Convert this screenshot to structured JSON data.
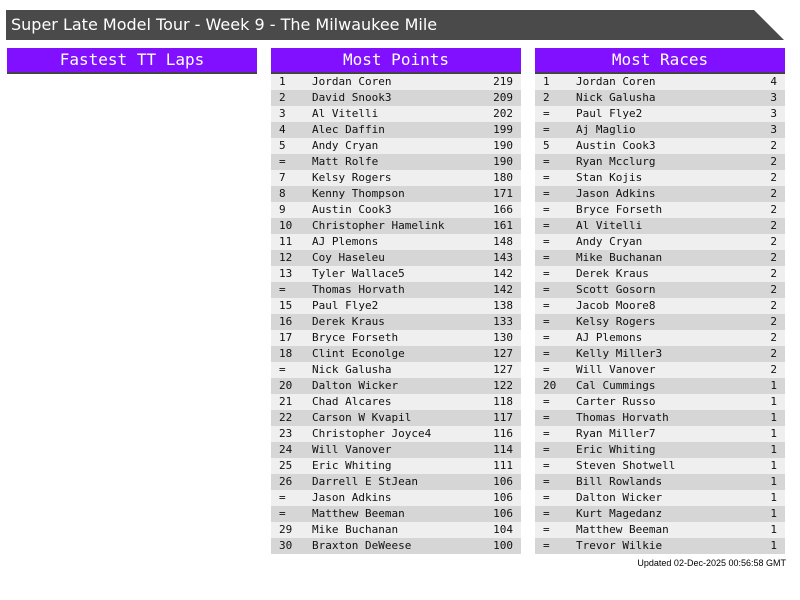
{
  "title": "Super Late Model Tour - Week 9 - The Milwaukee Mile",
  "colors": {
    "header": "#8010ff",
    "title_bar": "#4a4a4a",
    "row_light": "#efefef",
    "row_dark": "#d6d6d6"
  },
  "panels": [
    {
      "heading": "Fastest TT Laps",
      "rows": []
    },
    {
      "heading": "Most Points",
      "rows": [
        [
          "1",
          "Jordan Coren",
          "219"
        ],
        [
          "2",
          "David Snook3",
          "209"
        ],
        [
          "3",
          "Al Vitelli",
          "202"
        ],
        [
          "4",
          "Alec Daffin",
          "199"
        ],
        [
          "5",
          "Andy Cryan",
          "190"
        ],
        [
          "=",
          "Matt Rolfe",
          "190"
        ],
        [
          "7",
          "Kelsy Rogers",
          "180"
        ],
        [
          "8",
          "Kenny Thompson",
          "171"
        ],
        [
          "9",
          "Austin Cook3",
          "166"
        ],
        [
          "10",
          "Christopher Hamelink",
          "161"
        ],
        [
          "11",
          "AJ Plemons",
          "148"
        ],
        [
          "12",
          "Coy Haseleu",
          "143"
        ],
        [
          "13",
          "Tyler Wallace5",
          "142"
        ],
        [
          "=",
          "Thomas Horvath",
          "142"
        ],
        [
          "15",
          "Paul Flye2",
          "138"
        ],
        [
          "16",
          "Derek Kraus",
          "133"
        ],
        [
          "17",
          "Bryce Forseth",
          "130"
        ],
        [
          "18",
          "Clint Econolge",
          "127"
        ],
        [
          "=",
          "Nick Galusha",
          "127"
        ],
        [
          "20",
          "Dalton Wicker",
          "122"
        ],
        [
          "21",
          "Chad Alcares",
          "118"
        ],
        [
          "22",
          "Carson W Kvapil",
          "117"
        ],
        [
          "23",
          "Christopher Joyce4",
          "116"
        ],
        [
          "24",
          "Will Vanover",
          "114"
        ],
        [
          "25",
          "Eric Whiting",
          "111"
        ],
        [
          "26",
          "Darrell E StJean",
          "106"
        ],
        [
          "=",
          "Jason Adkins",
          "106"
        ],
        [
          "=",
          "Matthew Beeman",
          "106"
        ],
        [
          "29",
          "Mike Buchanan",
          "104"
        ],
        [
          "30",
          "Braxton DeWeese",
          "100"
        ]
      ]
    },
    {
      "heading": "Most Races",
      "rows": [
        [
          "1",
          "Jordan Coren",
          "4"
        ],
        [
          "2",
          "Nick Galusha",
          "3"
        ],
        [
          "=",
          "Paul Flye2",
          "3"
        ],
        [
          "=",
          "Aj Maglio",
          "3"
        ],
        [
          "5",
          "Austin Cook3",
          "2"
        ],
        [
          "=",
          "Ryan Mcclurg",
          "2"
        ],
        [
          "=",
          "Stan Kojis",
          "2"
        ],
        [
          "=",
          "Jason Adkins",
          "2"
        ],
        [
          "=",
          "Bryce Forseth",
          "2"
        ],
        [
          "=",
          "Al Vitelli",
          "2"
        ],
        [
          "=",
          "Andy Cryan",
          "2"
        ],
        [
          "=",
          "Mike Buchanan",
          "2"
        ],
        [
          "=",
          "Derek Kraus",
          "2"
        ],
        [
          "=",
          "Scott Gosorn",
          "2"
        ],
        [
          "=",
          "Jacob Moore8",
          "2"
        ],
        [
          "=",
          "Kelsy Rogers",
          "2"
        ],
        [
          "=",
          "AJ Plemons",
          "2"
        ],
        [
          "=",
          "Kelly Miller3",
          "2"
        ],
        [
          "=",
          "Will Vanover",
          "2"
        ],
        [
          "20",
          "Cal Cummings",
          "1"
        ],
        [
          "=",
          "Carter Russo",
          "1"
        ],
        [
          "=",
          "Thomas Horvath",
          "1"
        ],
        [
          "=",
          "Ryan Miller7",
          "1"
        ],
        [
          "=",
          "Eric Whiting",
          "1"
        ],
        [
          "=",
          "Steven Shotwell",
          "1"
        ],
        [
          "=",
          "Bill Rowlands",
          "1"
        ],
        [
          "=",
          "Dalton Wicker",
          "1"
        ],
        [
          "=",
          "Kurt Magedanz",
          "1"
        ],
        [
          "=",
          "Matthew Beeman",
          "1"
        ],
        [
          "=",
          "Trevor Wilkie",
          "1"
        ]
      ]
    }
  ],
  "updated": "Updated 02-Dec-2025 00:56:58 GMT"
}
